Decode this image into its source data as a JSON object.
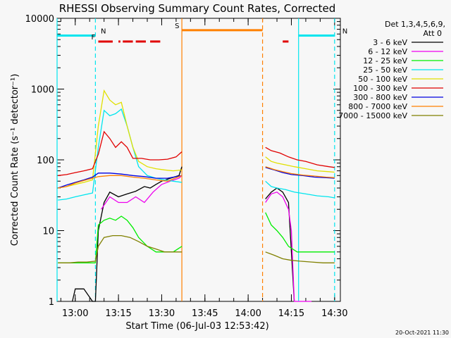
{
  "chart_data": {
    "type": "line",
    "title": "RHESSI Observing Summary Count Rates, Corrected",
    "xlabel": "Start Time (06-Jul-03 12:53:42)",
    "ylabel": "Corrected Count Rate (s⁻¹ detector⁻¹)",
    "y_scale": "log",
    "ylim": [
      1,
      10000
    ],
    "xlim": [
      "12:53:42",
      "14:32:00"
    ],
    "x_ticks": [
      "13:00",
      "13:15",
      "13:30",
      "13:45",
      "14:00",
      "14:15",
      "14:30"
    ],
    "y_ticks": [
      "1",
      "10",
      "100",
      "1000",
      "10000"
    ],
    "legend": {
      "position": "top-right",
      "header": [
        "Det 1,3,4,5,6,9,",
        "Att 0"
      ]
    },
    "flags": [
      {
        "label": "N",
        "color": "#00e5ee",
        "x_start": "12:53:42",
        "x_end": "13:07:00",
        "y": 5700
      },
      {
        "label": "N",
        "color": "#00e5ee",
        "x_start": "14:17:30",
        "x_end": "14:30:00",
        "y": 5700
      },
      {
        "label": "F",
        "color": "#e00000",
        "segments": [
          [
            "13:08:00",
            "13:13:00"
          ],
          [
            "13:15:00",
            "13:15:40"
          ],
          [
            "13:16:30",
            "13:20:00"
          ],
          [
            "13:21:00",
            "13:24:30"
          ],
          [
            "13:26:00",
            "13:29:30"
          ],
          [
            "14:12:00",
            "14:14:00"
          ]
        ],
        "y": 4700
      },
      {
        "label": "S",
        "color": "#ff8000",
        "x_start": "13:37:00",
        "x_end": "14:05:00",
        "y": 6800
      }
    ],
    "vlines": [
      {
        "x": "12:53:42",
        "color": "#00e5ee",
        "style": "solid"
      },
      {
        "x": "13:07:00",
        "color": "#00e5ee",
        "style": "dashed"
      },
      {
        "x": "14:17:30",
        "color": "#00e5ee",
        "style": "solid"
      },
      {
        "x": "14:30:00",
        "color": "#00e5ee",
        "style": "dashed"
      },
      {
        "x": "13:37:00",
        "color": "#ff8000",
        "style": "solid"
      },
      {
        "x": "14:05:00",
        "color": "#ff8000",
        "style": "dashed"
      }
    ],
    "series": [
      {
        "name": "3 - 6 keV",
        "color": "#000000",
        "points": [
          [
            "12:59:00",
            1
          ],
          [
            "13:00:00",
            1.5
          ],
          [
            "13:03:00",
            1.5
          ],
          [
            "13:06:00",
            1
          ],
          [
            "13:07:00",
            1
          ],
          [
            "13:08:00",
            10
          ],
          [
            "13:10:00",
            25
          ],
          [
            "13:12:00",
            35
          ],
          [
            "13:15:00",
            30
          ],
          [
            "13:18:00",
            33
          ],
          [
            "13:21:00",
            36
          ],
          [
            "13:24:00",
            42
          ],
          [
            "13:26:00",
            40
          ],
          [
            "13:28:00",
            45
          ],
          [
            "13:30:00",
            50
          ],
          [
            "13:33:00",
            55
          ],
          [
            "13:36:00",
            60
          ],
          [
            "13:37:00",
            80
          ],
          [
            null,
            null
          ],
          [
            "14:06:00",
            28
          ],
          [
            "14:08:00",
            35
          ],
          [
            "14:10:00",
            40
          ],
          [
            "14:12:00",
            35
          ],
          [
            "14:14:00",
            25
          ],
          [
            "14:15:00",
            5
          ],
          [
            "14:16:00",
            1
          ]
        ]
      },
      {
        "name": "6 - 12 keV",
        "color": "#ee00ee",
        "points": [
          [
            "13:09:00",
            20
          ],
          [
            "13:12:00",
            30
          ],
          [
            "13:15:00",
            25
          ],
          [
            "13:18:00",
            25
          ],
          [
            "13:21:00",
            30
          ],
          [
            "13:24:00",
            25
          ],
          [
            "13:27:00",
            35
          ],
          [
            "13:30:00",
            45
          ],
          [
            "13:33:00",
            50
          ],
          [
            "13:36:00",
            55
          ],
          [
            "13:37:00",
            60
          ],
          [
            null,
            null
          ],
          [
            "14:06:00",
            25
          ],
          [
            "14:08:00",
            33
          ],
          [
            "14:10:00",
            35
          ],
          [
            "14:12:00",
            30
          ],
          [
            "14:14:00",
            20
          ],
          [
            "14:15:00",
            10
          ],
          [
            "14:16:00",
            1
          ],
          [
            "14:22:00",
            1
          ]
        ]
      },
      {
        "name": "12 - 25 keV",
        "color": "#00ee00",
        "points": [
          [
            "12:54:00",
            3.5
          ],
          [
            "12:58:00",
            3.5
          ],
          [
            "13:01:00",
            3.5
          ],
          [
            "13:04:00",
            3.5
          ],
          [
            "13:07:00",
            3.5
          ],
          [
            "13:08:00",
            12
          ],
          [
            "13:10:00",
            14
          ],
          [
            "13:12:00",
            15
          ],
          [
            "13:14:00",
            14
          ],
          [
            "13:16:00",
            16
          ],
          [
            "13:18:00",
            14
          ],
          [
            "13:20:00",
            11
          ],
          [
            "13:22:00",
            8
          ],
          [
            "13:25:00",
            6
          ],
          [
            "13:28:00",
            5
          ],
          [
            "13:31:00",
            5
          ],
          [
            "13:34:00",
            5
          ],
          [
            "13:37:00",
            6
          ],
          [
            null,
            null
          ],
          [
            "14:06:00",
            18
          ],
          [
            "14:08:00",
            12
          ],
          [
            "14:10:00",
            10
          ],
          [
            "14:12:00",
            8
          ],
          [
            "14:14:00",
            6
          ],
          [
            "14:17:00",
            5
          ],
          [
            "14:20:00",
            5
          ],
          [
            "14:24:00",
            5
          ],
          [
            "14:28:00",
            5
          ],
          [
            "14:30:00",
            5
          ]
        ]
      },
      {
        "name": "25 - 50 keV",
        "color": "#00e5ee",
        "points": [
          [
            "12:54:00",
            27
          ],
          [
            "12:57:00",
            28
          ],
          [
            "13:00:00",
            30
          ],
          [
            "13:03:00",
            32
          ],
          [
            "13:06:00",
            34
          ],
          [
            "13:08:00",
            150
          ],
          [
            "13:10:00",
            500
          ],
          [
            "13:12:00",
            420
          ],
          [
            "13:14:00",
            450
          ],
          [
            "13:16:00",
            520
          ],
          [
            "13:18:00",
            300
          ],
          [
            "13:20:00",
            150
          ],
          [
            "13:22:00",
            80
          ],
          [
            "13:25:00",
            60
          ],
          [
            "13:28:00",
            55
          ],
          [
            "13:31:00",
            52
          ],
          [
            "13:34:00",
            50
          ],
          [
            "13:37:00",
            48
          ],
          [
            null,
            null
          ],
          [
            "14:06:00",
            50
          ],
          [
            "14:08:00",
            42
          ],
          [
            "14:10:00",
            40
          ],
          [
            "14:13:00",
            38
          ],
          [
            "14:16:00",
            35
          ],
          [
            "14:20:00",
            33
          ],
          [
            "14:24:00",
            31
          ],
          [
            "14:28:00",
            30
          ],
          [
            "14:30:00",
            29
          ]
        ]
      },
      {
        "name": "50 - 100 keV",
        "color": "#e0e000",
        "points": [
          [
            "12:54:00",
            40
          ],
          [
            "12:57:00",
            42
          ],
          [
            "13:00:00",
            45
          ],
          [
            "13:03:00",
            48
          ],
          [
            "13:06:00",
            52
          ],
          [
            "13:08:00",
            300
          ],
          [
            "13:10:00",
            950
          ],
          [
            "13:12:00",
            700
          ],
          [
            "13:14:00",
            600
          ],
          [
            "13:16:00",
            650
          ],
          [
            "13:18:00",
            300
          ],
          [
            "13:20:00",
            150
          ],
          [
            "13:22:00",
            95
          ],
          [
            "13:25:00",
            80
          ],
          [
            "13:28:00",
            75
          ],
          [
            "13:31:00",
            72
          ],
          [
            "13:34:00",
            70
          ],
          [
            "13:37:00",
            72
          ],
          [
            null,
            null
          ],
          [
            "14:06:00",
            110
          ],
          [
            "14:08:00",
            95
          ],
          [
            "14:10:00",
            90
          ],
          [
            "14:13:00",
            85
          ],
          [
            "14:16:00",
            80
          ],
          [
            "14:20:00",
            75
          ],
          [
            "14:24:00",
            70
          ],
          [
            "14:28:00",
            68
          ],
          [
            "14:30:00",
            67
          ]
        ]
      },
      {
        "name": "100 - 300 keV",
        "color": "#e00000",
        "points": [
          [
            "12:54:00",
            60
          ],
          [
            "12:57:00",
            62
          ],
          [
            "13:00:00",
            66
          ],
          [
            "13:03:00",
            70
          ],
          [
            "13:06:00",
            75
          ],
          [
            "13:08:00",
            120
          ],
          [
            "13:10:00",
            250
          ],
          [
            "13:12:00",
            200
          ],
          [
            "13:14:00",
            150
          ],
          [
            "13:16:00",
            180
          ],
          [
            "13:18:00",
            150
          ],
          [
            "13:20:00",
            105
          ],
          [
            "13:23:00",
            105
          ],
          [
            "13:26:00",
            100
          ],
          [
            "13:29:00",
            100
          ],
          [
            "13:32:00",
            102
          ],
          [
            "13:35:00",
            110
          ],
          [
            "13:37:00",
            130
          ],
          [
            null,
            null
          ],
          [
            "14:06:00",
            150
          ],
          [
            "14:08:00",
            135
          ],
          [
            "14:11:00",
            125
          ],
          [
            "14:14:00",
            110
          ],
          [
            "14:17:00",
            100
          ],
          [
            "14:20:00",
            95
          ],
          [
            "14:24:00",
            85
          ],
          [
            "14:28:00",
            80
          ],
          [
            "14:30:00",
            78
          ]
        ]
      },
      {
        "name": "300 - 800 keV",
        "color": "#0000e0",
        "points": [
          [
            "12:54:00",
            40
          ],
          [
            "12:57:00",
            44
          ],
          [
            "13:00:00",
            48
          ],
          [
            "13:03:00",
            52
          ],
          [
            "13:06:00",
            57
          ],
          [
            "13:08:00",
            65
          ],
          [
            "13:12:00",
            65
          ],
          [
            "13:16:00",
            63
          ],
          [
            "13:20:00",
            60
          ],
          [
            "13:24:00",
            58
          ],
          [
            "13:28:00",
            55
          ],
          [
            "13:32:00",
            55
          ],
          [
            "13:37:00",
            60
          ],
          [
            null,
            null
          ],
          [
            "14:06:00",
            78
          ],
          [
            "14:09:00",
            72
          ],
          [
            "14:12:00",
            66
          ],
          [
            "14:15:00",
            62
          ],
          [
            "14:19:00",
            60
          ],
          [
            "14:23:00",
            57
          ],
          [
            "14:27:00",
            56
          ],
          [
            "14:30:00",
            55
          ]
        ]
      },
      {
        "name": "800 - 7000 keV",
        "color": "#ff8000",
        "points": [
          [
            "12:54:00",
            40
          ],
          [
            "12:57:00",
            42
          ],
          [
            "13:00:00",
            47
          ],
          [
            "13:03:00",
            51
          ],
          [
            "13:06:00",
            55
          ],
          [
            "13:08:00",
            58
          ],
          [
            "13:12:00",
            60
          ],
          [
            "13:16:00",
            60
          ],
          [
            "13:20:00",
            57
          ],
          [
            "13:24:00",
            55
          ],
          [
            "13:28:00",
            52
          ],
          [
            "13:32:00",
            50
          ],
          [
            "13:37:00",
            60
          ],
          [
            null,
            null
          ],
          [
            "14:06:00",
            80
          ],
          [
            "14:09:00",
            73
          ],
          [
            "14:12:00",
            68
          ],
          [
            "14:15:00",
            64
          ],
          [
            "14:19:00",
            61
          ],
          [
            "14:23:00",
            59
          ],
          [
            "14:27:00",
            57
          ],
          [
            "14:30:00",
            56
          ]
        ]
      },
      {
        "name": "7000 - 15000 keV",
        "color": "#808000",
        "points": [
          [
            "12:54:00",
            3.5
          ],
          [
            "12:58:00",
            3.5
          ],
          [
            "13:01:00",
            3.6
          ],
          [
            "13:04:00",
            3.6
          ],
          [
            "13:07:00",
            3.7
          ],
          [
            "13:08:00",
            6
          ],
          [
            "13:10:00",
            8
          ],
          [
            "13:13:00",
            8.5
          ],
          [
            "13:16:00",
            8.5
          ],
          [
            "13:19:00",
            8
          ],
          [
            "13:22:00",
            7
          ],
          [
            "13:25:00",
            6
          ],
          [
            "13:28:00",
            5.5
          ],
          [
            "13:31:00",
            5
          ],
          [
            "13:34:00",
            5
          ],
          [
            "13:37:00",
            5
          ],
          [
            null,
            null
          ],
          [
            "14:06:00",
            5
          ],
          [
            "14:09:00",
            4.5
          ],
          [
            "14:12:00",
            4
          ],
          [
            "14:15:00",
            3.8
          ],
          [
            "14:18:00",
            3.7
          ],
          [
            "14:22:00",
            3.6
          ],
          [
            "14:26:00",
            3.5
          ],
          [
            "14:30:00",
            3.5
          ]
        ]
      }
    ]
  },
  "footer": {
    "timestamp": "20-Oct-2021 11:30"
  }
}
